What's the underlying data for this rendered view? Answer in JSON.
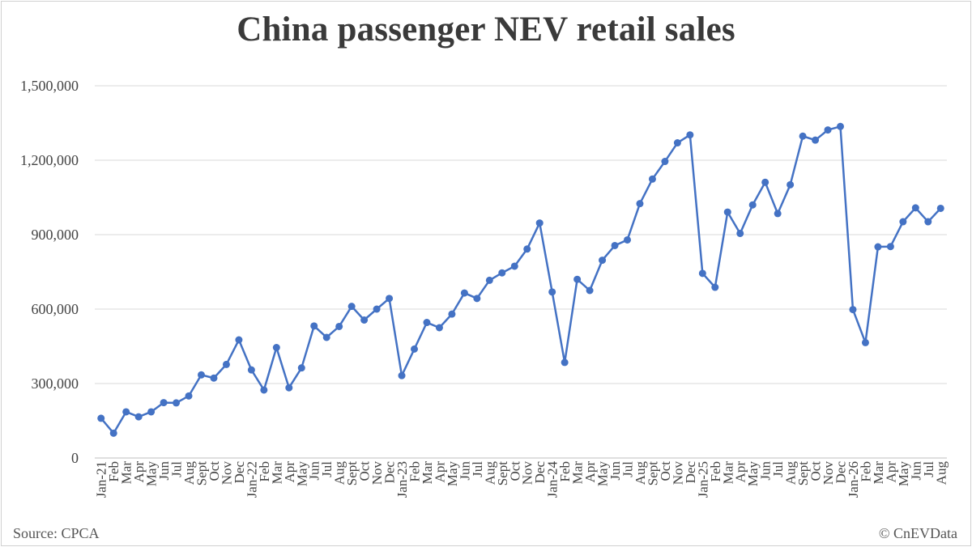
{
  "chart_data": {
    "type": "line",
    "title": "China passenger NEV retail sales",
    "xlabel": "",
    "ylabel": "",
    "ylim": [
      0,
      1500000
    ],
    "yticks": [
      0,
      300000,
      600000,
      900000,
      1200000,
      1500000
    ],
    "ytick_labels": [
      "0",
      "300,000",
      "600,000",
      "900,000",
      "1,200,000",
      "1,500,000"
    ],
    "grid": true,
    "legend": "none",
    "line_color": "#4472c4",
    "categories": [
      "Jan-21",
      "Feb",
      "Mar",
      "Apr",
      "May",
      "Jun",
      "Jul",
      "Aug",
      "Sept",
      "Oct",
      "Nov",
      "Dec",
      "Jan-22",
      "Feb",
      "Mar",
      "Apr",
      "May",
      "Jun",
      "Jul",
      "Aug",
      "Sept",
      "Oct",
      "Nov",
      "Dec",
      "Jan-23",
      "Feb",
      "Mar",
      "Apr",
      "May",
      "Jun",
      "Jul",
      "Aug",
      "Sept",
      "Oct",
      "Nov",
      "Dec",
      "Jan-24",
      "Feb",
      "Mar",
      "Apr",
      "May",
      "Jun",
      "Jul",
      "Aug",
      "Sept",
      "Oct",
      "Nov",
      "Dec",
      "Jan-25",
      "Feb",
      "Mar",
      "Apr",
      "May",
      "Jun",
      "Jul",
      "Aug",
      "Sept",
      "Oct",
      "Nov",
      "Dec",
      "Jan-26",
      "Feb",
      "Mar",
      "Apr",
      "May",
      "Jun",
      "Jul",
      "Aug"
    ],
    "series": [
      {
        "values": [
          160000,
          100000,
          186000,
          166000,
          186000,
          223000,
          222000,
          250000,
          335000,
          322000,
          377000,
          476000,
          355000,
          274000,
          445000,
          283000,
          363000,
          532000,
          486000,
          530000,
          611000,
          556000,
          600000,
          643000,
          332000,
          439000,
          546000,
          525000,
          580000,
          665000,
          643000,
          716000,
          746000,
          773000,
          842000,
          947000,
          669000,
          385000,
          720000,
          675000,
          797000,
          856000,
          879000,
          1025000,
          1124000,
          1195000,
          1270000,
          1302000,
          744000,
          688000,
          991000,
          905000,
          1020000,
          1111000,
          985000,
          1101000,
          1297000,
          1281000,
          1322000,
          1336000,
          598000,
          465000,
          851000,
          852000,
          952000,
          1008000,
          952000,
          1006000
        ]
      }
    ]
  },
  "footer": {
    "source": "Source: CPCA",
    "credit": "© CnEVData"
  }
}
